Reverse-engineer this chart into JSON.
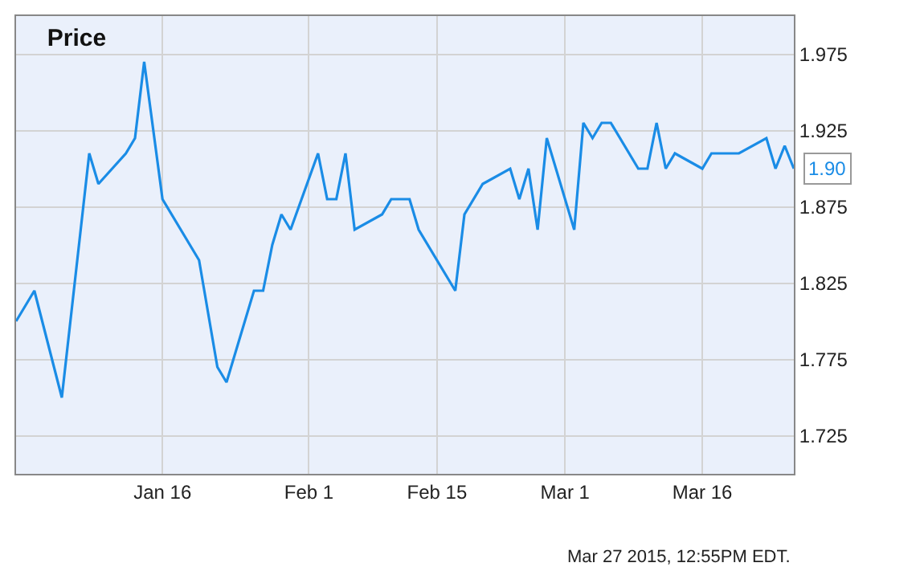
{
  "chart_data": {
    "type": "line",
    "title": "Price",
    "x": [
      "2014-12-31",
      "2015-01-02",
      "2015-01-05",
      "2015-01-08",
      "2015-01-09",
      "2015-01-12",
      "2015-01-13",
      "2015-01-14",
      "2015-01-16",
      "2015-01-20",
      "2015-01-22",
      "2015-01-23",
      "2015-01-26",
      "2015-01-27",
      "2015-01-28",
      "2015-01-29",
      "2015-01-30",
      "2015-02-02",
      "2015-02-03",
      "2015-02-04",
      "2015-02-05",
      "2015-02-06",
      "2015-02-09",
      "2015-02-10",
      "2015-02-12",
      "2015-02-13",
      "2015-02-17",
      "2015-02-18",
      "2015-02-20",
      "2015-02-23",
      "2015-02-24",
      "2015-02-25",
      "2015-02-26",
      "2015-02-27",
      "2015-03-02",
      "2015-03-03",
      "2015-03-04",
      "2015-03-05",
      "2015-03-06",
      "2015-03-09",
      "2015-03-10",
      "2015-03-11",
      "2015-03-12",
      "2015-03-13",
      "2015-03-16",
      "2015-03-17",
      "2015-03-20",
      "2015-03-23",
      "2015-03-24",
      "2015-03-25",
      "2015-03-26"
    ],
    "series": [
      {
        "color": "#1a8ce6",
        "values": [
          1.8,
          1.82,
          1.75,
          1.91,
          1.89,
          1.91,
          1.92,
          1.97,
          1.88,
          1.84,
          1.77,
          1.76,
          1.82,
          1.82,
          1.85,
          1.87,
          1.86,
          1.91,
          1.88,
          1.88,
          1.91,
          1.86,
          1.87,
          1.88,
          1.88,
          1.86,
          1.82,
          1.87,
          1.89,
          1.9,
          1.88,
          1.9,
          1.86,
          1.92,
          1.86,
          1.93,
          1.92,
          1.93,
          1.93,
          1.9,
          1.9,
          1.93,
          1.9,
          1.91,
          1.9,
          1.91,
          1.91,
          1.92,
          1.9,
          1.915,
          1.9
        ]
      }
    ],
    "xlim": [
      "2014-12-31",
      "2015-03-26"
    ],
    "xticks": [
      {
        "value": "2015-01-16",
        "label": "Jan 16"
      },
      {
        "value": "2015-02-01",
        "label": "Feb 1"
      },
      {
        "value": "2015-02-15",
        "label": "Feb 15"
      },
      {
        "value": "2015-03-01",
        "label": "Mar 1"
      },
      {
        "value": "2015-03-16",
        "label": "Mar 16"
      }
    ],
    "ylim": [
      1.7,
      2.0
    ],
    "yticks": [
      1.725,
      1.775,
      1.825,
      1.875,
      1.925,
      1.975
    ],
    "grid": true,
    "marker": "none",
    "line_style": "solid",
    "annotations": [
      {
        "text": "1.90",
        "x": "2015-03-26",
        "y": 1.9
      },
      "Mar 27 2015, 12:55PM EDT."
    ]
  }
}
